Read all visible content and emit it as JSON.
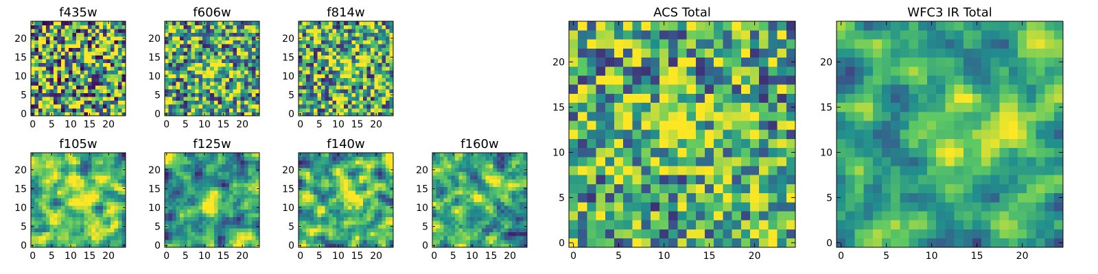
{
  "figure": {
    "background": "#ffffff"
  },
  "chart_data": [
    {
      "type": "heatmap",
      "title": "f435w",
      "xticks": [
        0,
        5,
        10,
        15,
        20
      ],
      "yticks": [
        0,
        5,
        10,
        15,
        20
      ],
      "grid_size": 25,
      "xlim": [
        -0.5,
        24.5
      ],
      "ylim": [
        -0.5,
        24.5
      ],
      "source_center": null,
      "noise": 0.6,
      "smooth": 0,
      "seed": 3
    },
    {
      "type": "heatmap",
      "title": "f606w",
      "xticks": [
        0,
        5,
        10,
        15,
        20
      ],
      "yticks": [
        0,
        5,
        10,
        15,
        20
      ],
      "grid_size": 25,
      "xlim": [
        -0.5,
        24.5
      ],
      "ylim": [
        -0.5,
        24.5
      ],
      "source_center": [
        12,
        12
      ],
      "noise": 0.5,
      "smooth": 0,
      "seed": 7
    },
    {
      "type": "heatmap",
      "title": "f814w",
      "xticks": [
        0,
        5,
        10,
        15,
        20
      ],
      "yticks": [
        0,
        5,
        10,
        15,
        20
      ],
      "grid_size": 25,
      "xlim": [
        -0.5,
        24.5
      ],
      "ylim": [
        -0.5,
        24.5
      ],
      "source_center": [
        12,
        12
      ],
      "noise": 0.5,
      "smooth": 0,
      "seed": 11
    },
    {
      "type": "heatmap",
      "title": "f105w",
      "xticks": [
        0,
        5,
        10,
        15,
        20
      ],
      "yticks": [
        0,
        5,
        10,
        15,
        20
      ],
      "grid_size": 25,
      "xlim": [
        -0.5,
        24.5
      ],
      "ylim": [
        -0.5,
        24.5
      ],
      "source_center": [
        13,
        12
      ],
      "noise": 0.5,
      "smooth": 1,
      "seed": 17
    },
    {
      "type": "heatmap",
      "title": "f125w",
      "xticks": [
        0,
        5,
        10,
        15,
        20
      ],
      "yticks": [
        0,
        5,
        10,
        15,
        20
      ],
      "grid_size": 25,
      "xlim": [
        -0.5,
        24.5
      ],
      "ylim": [
        -0.5,
        24.5
      ],
      "source_center": [
        12,
        12
      ],
      "noise": 0.5,
      "smooth": 1,
      "seed": 23
    },
    {
      "type": "heatmap",
      "title": "f140w",
      "xticks": [
        0,
        5,
        10,
        15,
        20
      ],
      "yticks": [
        0,
        5,
        10,
        15,
        20
      ],
      "grid_size": 25,
      "xlim": [
        -0.5,
        24.5
      ],
      "ylim": [
        -0.5,
        24.5
      ],
      "source_center": [
        13,
        12
      ],
      "noise": 0.5,
      "smooth": 1,
      "seed": 29
    },
    {
      "type": "heatmap",
      "title": "f160w",
      "xticks": [
        0,
        5,
        10,
        15,
        20
      ],
      "yticks": [
        0,
        5,
        10,
        15,
        20
      ],
      "grid_size": 25,
      "xlim": [
        -0.5,
        24.5
      ],
      "ylim": [
        -0.5,
        24.5
      ],
      "source_center": [
        12,
        12
      ],
      "noise": 0.5,
      "smooth": 1,
      "seed": 31
    },
    {
      "type": "heatmap",
      "title": "ACS Total",
      "xticks": [
        0,
        5,
        10,
        15,
        20
      ],
      "yticks": [
        0,
        5,
        10,
        15,
        20
      ],
      "grid_size": 25,
      "xlim": [
        -0.5,
        24.5
      ],
      "ylim": [
        -0.5,
        24.5
      ],
      "source_center": [
        12,
        12
      ],
      "noise": 0.45,
      "smooth": 0,
      "seed": 41
    },
    {
      "type": "heatmap",
      "title": "WFC3 IR Total",
      "xticks": [
        0,
        5,
        10,
        15,
        20
      ],
      "yticks": [
        0,
        5,
        10,
        15,
        20
      ],
      "grid_size": 25,
      "xlim": [
        -0.5,
        24.5
      ],
      "ylim": [
        -0.5,
        24.5
      ],
      "source_center": [
        12,
        12
      ],
      "noise": 0.4,
      "smooth": 1,
      "seed": 53
    }
  ],
  "colormap": [
    "#440154",
    "#3b528b",
    "#21908d",
    "#5dc963",
    "#fde725"
  ]
}
